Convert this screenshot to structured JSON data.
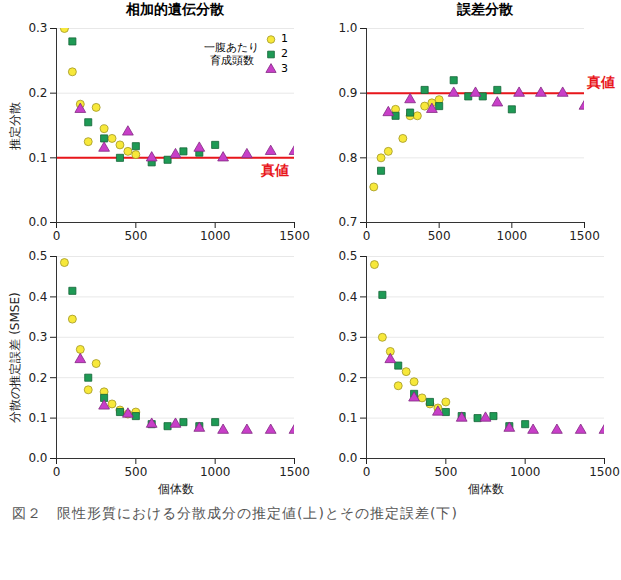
{
  "caption": "図２　限性形質における分散成分の推定値(上)とその推定誤差(下)",
  "chart_data": [
    {
      "type": "scatter",
      "title": "相加的遺伝分散",
      "y_label": "推定分散",
      "xlim": [
        0,
        1500
      ],
      "xticks": [
        0,
        500,
        1000,
        1500
      ],
      "ylim": [
        0,
        0.3
      ],
      "yticks": [
        {
          "value": 0,
          "label": "0.0"
        },
        {
          "value": 0.1,
          "label": "0.1"
        },
        {
          "value": 0.2,
          "label": "0.2"
        },
        {
          "value": 0.3,
          "label": "0.3"
        }
      ],
      "grid": true,
      "legend": "top-right",
      "legend_title": "一腹あたり\n育成頭数",
      "reference_line": {
        "value": 0.1,
        "label": "真値",
        "color": "#e8161b"
      },
      "series": [
        {
          "name": "1",
          "color": "#f7e83a",
          "marker": "circle",
          "x": [
            50,
            100,
            150,
            200,
            250,
            300,
            350,
            400,
            450,
            500
          ],
          "values": [
            0.3,
            0.233,
            0.183,
            0.125,
            0.178,
            0.145,
            0.13,
            0.12,
            0.11,
            0.105
          ]
        },
        {
          "name": "2",
          "color": "#1e9a55",
          "marker": "square",
          "x": [
            100,
            200,
            300,
            400,
            500,
            600,
            700,
            800,
            900,
            1000
          ],
          "values": [
            0.28,
            0.155,
            0.13,
            0.1,
            0.118,
            0.093,
            0.097,
            0.11,
            0.108,
            0.12
          ]
        },
        {
          "name": "3",
          "color": "#c83fc8",
          "marker": "triangle",
          "x": [
            150,
            300,
            450,
            600,
            750,
            900,
            1050,
            1200,
            1350,
            1500
          ],
          "values": [
            0.175,
            0.115,
            0.14,
            0.1,
            0.105,
            0.115,
            0.1,
            0.105,
            0.11,
            0.11
          ]
        }
      ]
    },
    {
      "type": "scatter",
      "title": "誤差分散",
      "xlim": [
        0,
        1500
      ],
      "xticks": [
        0,
        500,
        1000,
        1500
      ],
      "ylim": [
        0.7,
        1.0
      ],
      "yticks": [
        {
          "value": 0.7,
          "label": "0.7"
        },
        {
          "value": 0.8,
          "label": "0.8"
        },
        {
          "value": 0.9,
          "label": "0.9"
        },
        {
          "value": 1.0,
          "label": "1.0"
        }
      ],
      "grid": true,
      "reference_line": {
        "value": 0.9,
        "label": "真値",
        "color": "#e8161b"
      },
      "series": [
        {
          "name": "1",
          "color": "#f7e83a",
          "marker": "circle",
          "x": [
            50,
            100,
            150,
            200,
            250,
            300,
            350,
            400,
            450,
            500
          ],
          "values": [
            0.755,
            0.8,
            0.81,
            0.875,
            0.83,
            0.865,
            0.865,
            0.88,
            0.885,
            0.89
          ]
        },
        {
          "name": "2",
          "color": "#1e9a55",
          "marker": "square",
          "x": [
            100,
            200,
            300,
            400,
            500,
            600,
            700,
            800,
            900,
            1000
          ],
          "values": [
            0.78,
            0.865,
            0.87,
            0.905,
            0.88,
            0.92,
            0.895,
            0.895,
            0.905,
            0.875
          ]
        },
        {
          "name": "3",
          "color": "#c83fc8",
          "marker": "triangle",
          "x": [
            150,
            300,
            450,
            600,
            750,
            900,
            1050,
            1200,
            1350,
            1500
          ],
          "values": [
            0.87,
            0.89,
            0.875,
            0.9,
            0.9,
            0.885,
            0.9,
            0.9,
            0.9,
            0.88
          ]
        }
      ]
    },
    {
      "type": "scatter",
      "y_label": "分散の推定誤差 (SMSE)",
      "x_label": "個体数",
      "xlim": [
        0,
        1500
      ],
      "xticks": [
        0,
        500,
        1000,
        1500
      ],
      "ylim": [
        0,
        0.5
      ],
      "yticks": [
        {
          "value": 0,
          "label": "0.0"
        },
        {
          "value": 0.1,
          "label": "0.1"
        },
        {
          "value": 0.2,
          "label": "0.2"
        },
        {
          "value": 0.3,
          "label": "0.3"
        },
        {
          "value": 0.4,
          "label": "0.4"
        },
        {
          "value": 0.5,
          "label": "0.5"
        }
      ],
      "grid": true,
      "series": [
        {
          "name": "1",
          "color": "#f7e83a",
          "marker": "circle",
          "x": [
            50,
            100,
            150,
            200,
            250,
            300,
            350,
            400,
            450,
            500
          ],
          "values": [
            0.485,
            0.345,
            0.27,
            0.17,
            0.235,
            0.165,
            0.135,
            0.12,
            0.11,
            0.115
          ]
        },
        {
          "name": "2",
          "color": "#1e9a55",
          "marker": "square",
          "x": [
            100,
            200,
            300,
            400,
            500,
            600,
            700,
            800,
            900,
            1000
          ],
          "values": [
            0.415,
            0.2,
            0.15,
            0.115,
            0.105,
            0.085,
            0.08,
            0.09,
            0.08,
            0.09
          ]
        },
        {
          "name": "3",
          "color": "#c83fc8",
          "marker": "triangle",
          "x": [
            150,
            300,
            450,
            600,
            750,
            900,
            1050,
            1200,
            1350,
            1500
          ],
          "values": [
            0.245,
            0.13,
            0.11,
            0.085,
            0.085,
            0.075,
            0.07,
            0.07,
            0.07,
            0.07
          ]
        }
      ]
    },
    {
      "type": "scatter",
      "x_label": "個体数",
      "xlim": [
        0,
        1500
      ],
      "xticks": [
        0,
        500,
        1000,
        1500
      ],
      "ylim": [
        0,
        0.5
      ],
      "yticks": [
        {
          "value": 0,
          "label": "0.0"
        },
        {
          "value": 0.1,
          "label": "0.1"
        },
        {
          "value": 0.2,
          "label": "0.2"
        },
        {
          "value": 0.3,
          "label": "0.3"
        },
        {
          "value": 0.4,
          "label": "0.4"
        },
        {
          "value": 0.5,
          "label": "0.5"
        }
      ],
      "grid": true,
      "series": [
        {
          "name": "1",
          "color": "#f7e83a",
          "marker": "circle",
          "x": [
            50,
            100,
            150,
            200,
            250,
            300,
            350,
            400,
            450,
            500
          ],
          "values": [
            0.48,
            0.3,
            0.265,
            0.18,
            0.215,
            0.19,
            0.15,
            0.135,
            0.125,
            0.14
          ]
        },
        {
          "name": "2",
          "color": "#1e9a55",
          "marker": "square",
          "x": [
            100,
            200,
            300,
            400,
            500,
            600,
            700,
            800,
            900,
            1000
          ],
          "values": [
            0.405,
            0.23,
            0.16,
            0.14,
            0.115,
            0.105,
            0.1,
            0.105,
            0.08,
            0.085
          ]
        },
        {
          "name": "3",
          "color": "#c83fc8",
          "marker": "triangle",
          "x": [
            150,
            300,
            450,
            600,
            750,
            900,
            1050,
            1200,
            1350,
            1500
          ],
          "values": [
            0.245,
            0.15,
            0.115,
            0.1,
            0.1,
            0.075,
            0.07,
            0.07,
            0.07,
            0.07
          ]
        }
      ]
    }
  ]
}
